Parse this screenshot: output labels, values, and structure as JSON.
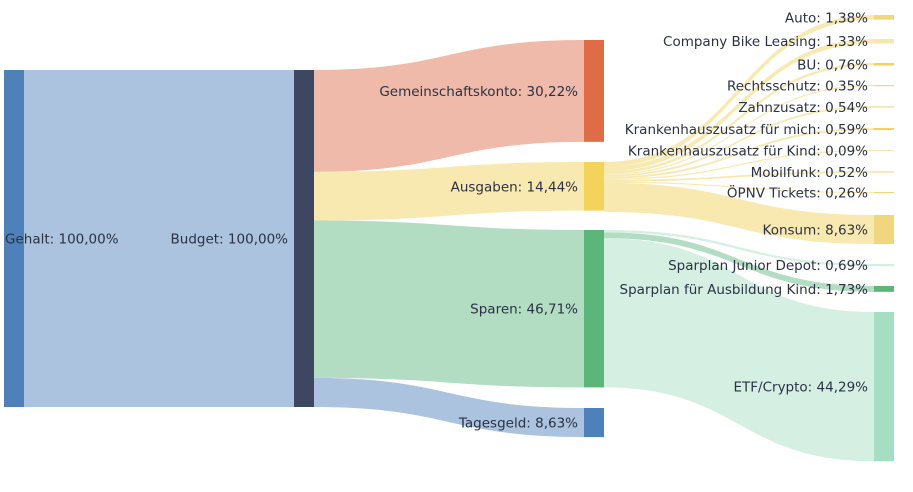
{
  "chart_data": {
    "type": "sankey",
    "title": "",
    "unit": "%",
    "nodes": [
      {
        "id": "gehalt",
        "label": "Gehalt: 100,00%",
        "name": "Gehalt",
        "value": 100.0,
        "column": 0,
        "color": "#4e81b9"
      },
      {
        "id": "budget",
        "label": "Budget: 100,00%",
        "name": "Budget",
        "value": 100.0,
        "column": 1,
        "color": "#3d4762"
      },
      {
        "id": "gemeinschaftskonto",
        "label": "Gemeinschaftskonto: 30,22%",
        "name": "Gemeinschaftskonto",
        "value": 30.22,
        "column": 2,
        "color": "#e06c47"
      },
      {
        "id": "ausgaben",
        "label": "Ausgaben: 14,44%",
        "name": "Ausgaben",
        "value": 14.44,
        "column": 2,
        "color": "#f3d35c"
      },
      {
        "id": "sparen",
        "label": "Sparen: 46,71%",
        "name": "Sparen",
        "value": 46.71,
        "column": 2,
        "color": "#5db679"
      },
      {
        "id": "tagesgeld",
        "label": "Tagesgeld: 8,63%",
        "name": "Tagesgeld",
        "value": 8.63,
        "column": 2,
        "color": "#4e81b9"
      },
      {
        "id": "auto",
        "label": "Auto: 1,38%",
        "name": "Auto",
        "value": 1.38,
        "column": 3,
        "color": "#f0d67c"
      },
      {
        "id": "bike",
        "label": "Company Bike Leasing: 1,33%",
        "name": "Company Bike Leasing",
        "value": 1.33,
        "column": 3,
        "color": "#f6e7b0"
      },
      {
        "id": "bu",
        "label": "BU: 0,76%",
        "name": "BU",
        "value": 0.76,
        "column": 3,
        "color": "#f3d35c"
      },
      {
        "id": "rechtsschutz",
        "label": "Rechtsschutz: 0,35%",
        "name": "Rechtsschutz",
        "value": 0.35,
        "column": 3,
        "color": "#f0d67c"
      },
      {
        "id": "zahnzusatz",
        "label": "Zahnzusatz: 0,54%",
        "name": "Zahnzusatz",
        "value": 0.54,
        "column": 3,
        "color": "#f6e7b0"
      },
      {
        "id": "kh_mich",
        "label": "Krankenhauszusatz für mich: 0,59%",
        "name": "Krankenhauszusatz für mich",
        "value": 0.59,
        "column": 3,
        "color": "#f3d35c"
      },
      {
        "id": "kh_kind",
        "label": "Krankenhauszusatz für Kind: 0,09%",
        "name": "Krankenhauszusatz für Kind",
        "value": 0.09,
        "column": 3,
        "color": "#f6e7b0"
      },
      {
        "id": "mobilfunk",
        "label": "Mobilfunk: 0,52%",
        "name": "Mobilfunk",
        "value": 0.52,
        "column": 3,
        "color": "#f6e7b0"
      },
      {
        "id": "oepnv",
        "label": "ÖPNV Tickets: 0,26%",
        "name": "ÖPNV Tickets",
        "value": 0.26,
        "column": 3,
        "color": "#f0d67c"
      },
      {
        "id": "konsum",
        "label": "Konsum: 8,63%",
        "name": "Konsum",
        "value": 8.63,
        "column": 3,
        "color": "#f0d67c"
      },
      {
        "id": "junior",
        "label": "Sparplan Junior Depot: 0,69%",
        "name": "Sparplan Junior Depot",
        "value": 0.69,
        "column": 3,
        "color": "#d3efe0"
      },
      {
        "id": "ausbildung",
        "label": "Sparplan für Ausbildung Kind: 1,73%",
        "name": "Sparplan für Ausbildung Kind",
        "value": 1.73,
        "column": 3,
        "color": "#5db679"
      },
      {
        "id": "etf",
        "label": "ETF/Crypto: 44,29%",
        "name": "ETF/Crypto",
        "value": 44.29,
        "column": 3,
        "color": "#a5dfc3"
      }
    ],
    "links": [
      {
        "source": "gehalt",
        "target": "budget",
        "value": 100.0,
        "color": "#a7c0dc"
      },
      {
        "source": "budget",
        "target": "gemeinschaftskonto",
        "value": 30.22,
        "color": "#eeb6a4"
      },
      {
        "source": "budget",
        "target": "ausgaben",
        "value": 14.44,
        "color": "#f8e8ac"
      },
      {
        "source": "budget",
        "target": "sparen",
        "value": 46.71,
        "color": "#aedbbf"
      },
      {
        "source": "budget",
        "target": "tagesgeld",
        "value": 8.63,
        "color": "#a7c0dc"
      },
      {
        "source": "ausgaben",
        "target": "auto",
        "value": 1.38,
        "color": "#f8e8ac"
      },
      {
        "source": "ausgaben",
        "target": "bike",
        "value": 1.33,
        "color": "#f8e8ac"
      },
      {
        "source": "ausgaben",
        "target": "bu",
        "value": 0.76,
        "color": "#f8e8ac"
      },
      {
        "source": "ausgaben",
        "target": "rechtsschutz",
        "value": 0.35,
        "color": "#f8e8ac"
      },
      {
        "source": "ausgaben",
        "target": "zahnzusatz",
        "value": 0.54,
        "color": "#f8e8ac"
      },
      {
        "source": "ausgaben",
        "target": "kh_mich",
        "value": 0.59,
        "color": "#f8e8ac"
      },
      {
        "source": "ausgaben",
        "target": "kh_kind",
        "value": 0.09,
        "color": "#f8e8ac"
      },
      {
        "source": "ausgaben",
        "target": "mobilfunk",
        "value": 0.52,
        "color": "#f8e8ac"
      },
      {
        "source": "ausgaben",
        "target": "oepnv",
        "value": 0.26,
        "color": "#f8e8ac"
      },
      {
        "source": "ausgaben",
        "target": "konsum",
        "value": 8.63,
        "color": "#f8e8ac"
      },
      {
        "source": "sparen",
        "target": "junior",
        "value": 0.69,
        "color": "#d3efe0"
      },
      {
        "source": "sparen",
        "target": "ausbildung",
        "value": 1.73,
        "color": "#aedbbf"
      },
      {
        "source": "sparen",
        "target": "etf",
        "value": 44.29,
        "color": "#d3efe0"
      }
    ],
    "text_color": "#2b3245"
  }
}
